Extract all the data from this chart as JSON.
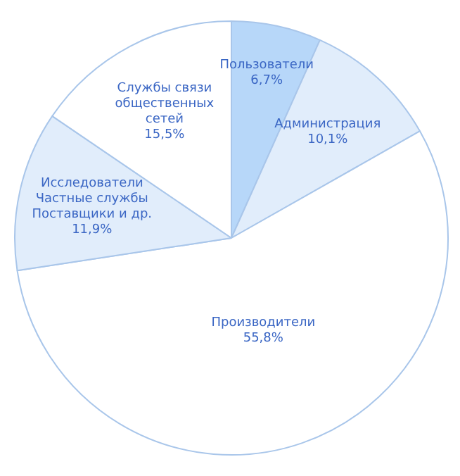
{
  "chart_data": {
    "type": "pie",
    "categories": [
      "Пользователи",
      "Администрация",
      "Производители",
      "Исследователи Частные службы Поставщики и др.",
      "Службы связи общественных сетей"
    ],
    "values": [
      6.7,
      10.1,
      55.8,
      11.9,
      15.5
    ],
    "value_labels": [
      "6,7%",
      "10,1%",
      "55,8%",
      "11,9%",
      "15,5%"
    ],
    "colors": [
      "#b7d7f9",
      "#e1edfb",
      "#ffffff",
      "#e1edfb",
      "#ffffff"
    ],
    "legend": false
  }
}
